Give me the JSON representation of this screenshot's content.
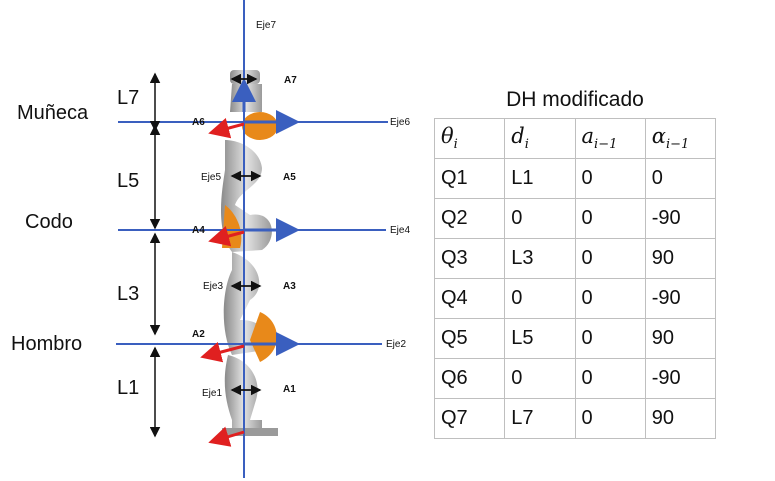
{
  "segments": {
    "muneca": "Muñeca",
    "codo": "Codo",
    "hombro": "Hombro",
    "l7": "L7",
    "l5": "L5",
    "l3": "L3",
    "l1": "L1"
  },
  "axes": {
    "eje1": "Eje1",
    "eje2": "Eje2",
    "eje3": "Eje3",
    "eje4": "Eje4",
    "eje5": "Eje5",
    "eje6": "Eje6",
    "eje7": "Eje7"
  },
  "joints": {
    "a1": "A1",
    "a2": "A2",
    "a3": "A3",
    "a4": "A4",
    "a5": "A5",
    "a6": "A6",
    "a7": "A7"
  },
  "table": {
    "title": "DH modificado",
    "headers": {
      "theta": "θ",
      "theta_sub": "i",
      "d": "d",
      "d_sub": "i",
      "a": "a",
      "a_sub": "i−1",
      "alpha": "α",
      "alpha_sub": "i−1"
    },
    "rows": [
      [
        "Q1",
        "L1",
        "0",
        "0"
      ],
      [
        "Q2",
        "0",
        "0",
        "-90"
      ],
      [
        "Q3",
        "L3",
        "0",
        "90"
      ],
      [
        "Q4",
        "0",
        "0",
        "-90"
      ],
      [
        "Q5",
        "L5",
        "0",
        "90"
      ],
      [
        "Q6",
        "0",
        "0",
        "-90"
      ],
      [
        "Q7",
        "L7",
        "0",
        "90"
      ]
    ]
  },
  "colors": {
    "axis_blue": "#3a5fbf",
    "arrow_red": "#e02020",
    "robot_orange": "#e8891a",
    "robot_gray": "#b8b8b8"
  }
}
